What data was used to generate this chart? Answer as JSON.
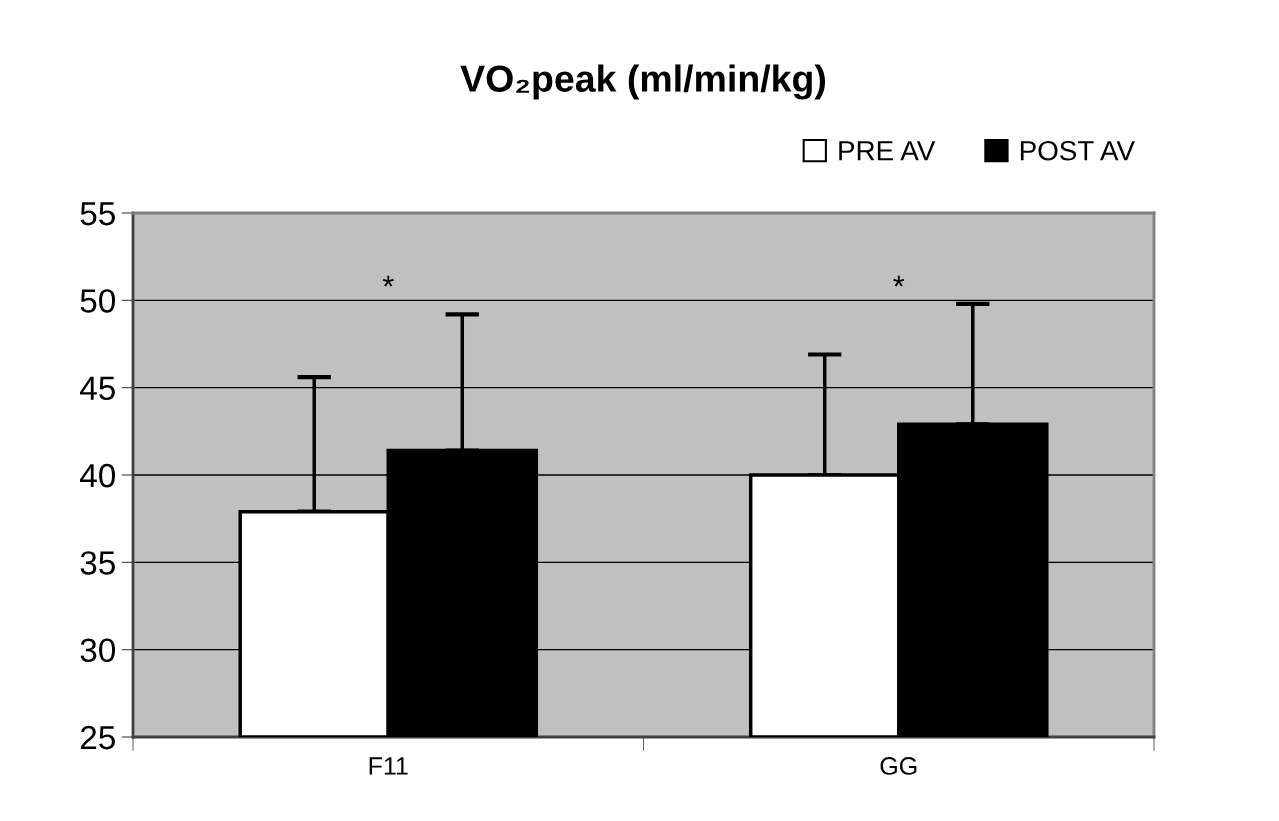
{
  "chart_data": {
    "type": "bar",
    "title": "VO₂peak (ml/min/kg)",
    "categories": [
      "F11",
      "GG"
    ],
    "series": [
      {
        "name": "PRE AV",
        "color": "#ffffff",
        "values": [
          37.9,
          40.0
        ],
        "errors": [
          [
            37.9,
            45.6
          ],
          [
            40.0,
            46.9
          ]
        ]
      },
      {
        "name": "POST AV",
        "color": "#000000",
        "values": [
          41.4,
          42.9
        ],
        "errors": [
          [
            41.4,
            49.2
          ],
          [
            42.9,
            49.8
          ]
        ]
      }
    ],
    "ylim": [
      25,
      55
    ],
    "yticks": [
      25,
      30,
      35,
      40,
      45,
      50,
      55
    ],
    "grid": "y",
    "legend": "top right",
    "annotations": [
      "*",
      "*"
    ]
  }
}
